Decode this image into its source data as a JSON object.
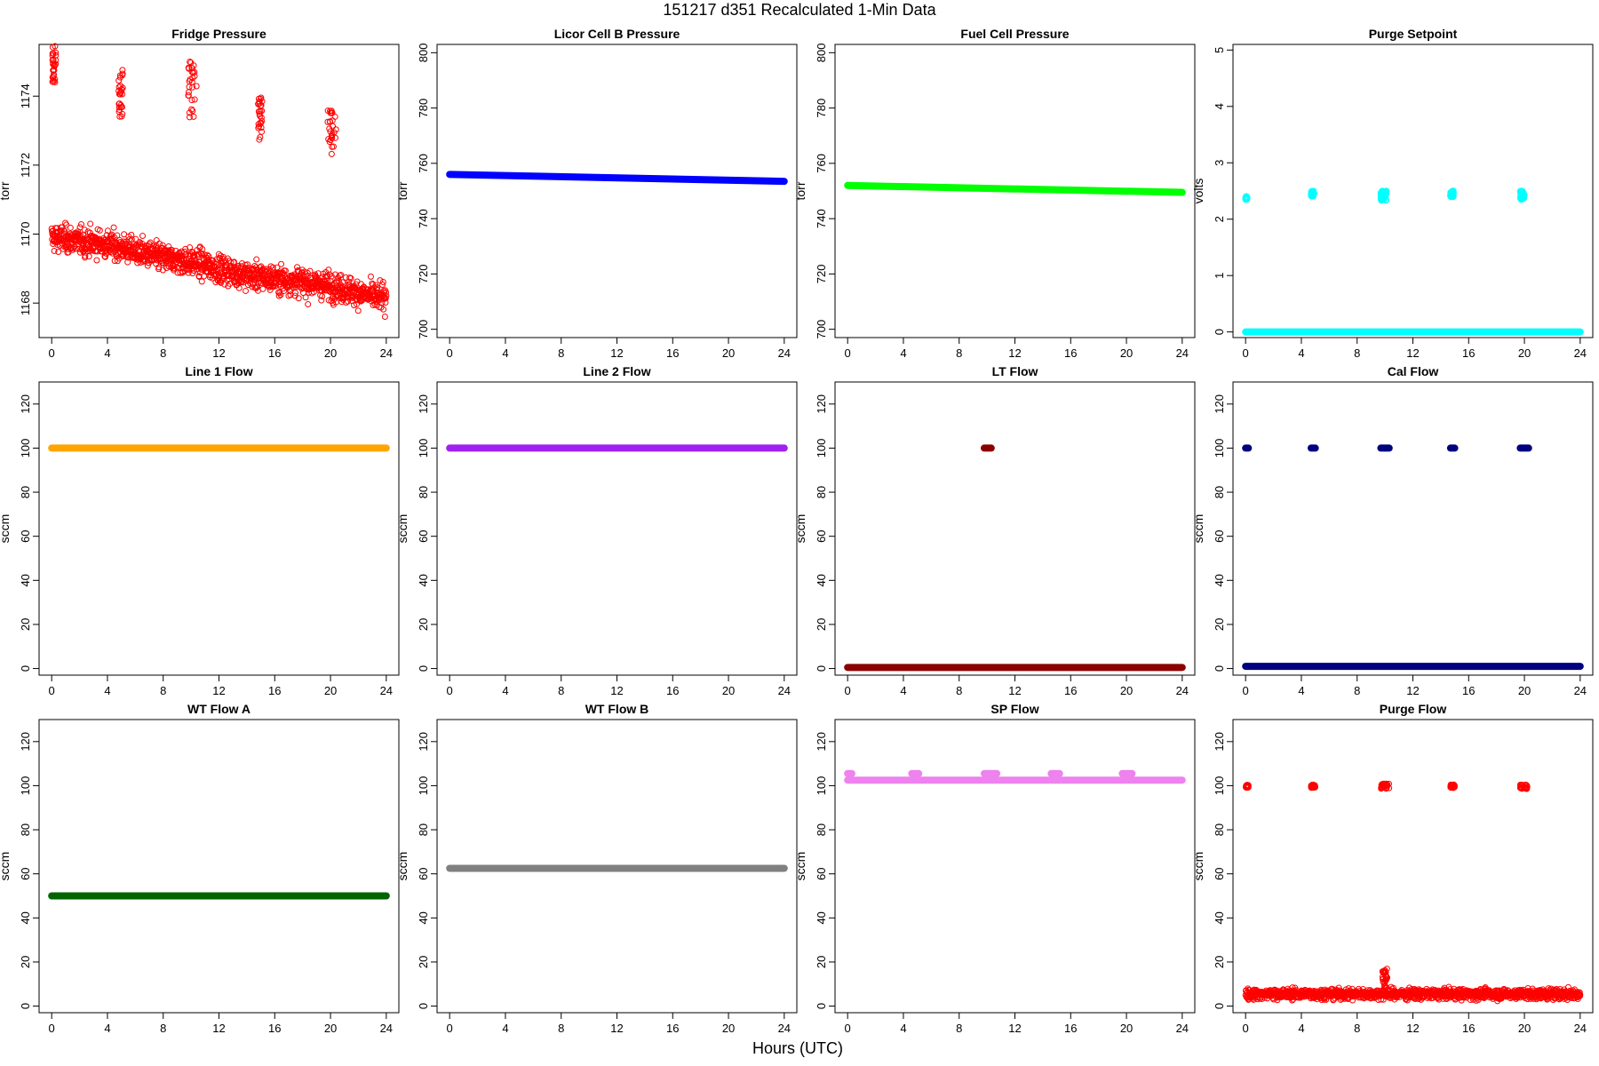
{
  "page": {
    "title": "151217   d351   Recalculated 1-Min Data",
    "xlabel": "Hours (UTC)"
  },
  "chart_data": [
    {
      "type": "scatter",
      "title": "Fridge Pressure",
      "ylabel": "torr",
      "xlim": [
        0,
        24
      ],
      "ylim": [
        1167,
        1175.5
      ],
      "yticks": [
        1168,
        1170,
        1172,
        1174
      ],
      "xticks": [
        0,
        4,
        8,
        12,
        16,
        20,
        24
      ],
      "color": "#ff0000",
      "marker": "open",
      "series": [
        {
          "type": "trend",
          "x": [
            0,
            2,
            4,
            6,
            8,
            10,
            12,
            14,
            16,
            18,
            20,
            22,
            24
          ],
          "y": [
            1169.9,
            1169.8,
            1169.7,
            1169.5,
            1169.3,
            1169.2,
            1169.0,
            1168.8,
            1168.7,
            1168.6,
            1168.5,
            1168.3,
            1168.1
          ],
          "spread": 0.5
        },
        {
          "type": "cluster",
          "x": [
            0.05,
            0.3
          ],
          "y": [
            1174.4,
            1175.5
          ]
        },
        {
          "type": "cluster",
          "x": [
            4.8,
            5.1
          ],
          "y": [
            1173.4,
            1174.8
          ]
        },
        {
          "type": "cluster",
          "x": [
            9.8,
            10.4
          ],
          "y": [
            1173.3,
            1175.0
          ]
        },
        {
          "type": "cluster",
          "x": [
            14.8,
            15.1
          ],
          "y": [
            1172.6,
            1174.0
          ]
        },
        {
          "type": "cluster",
          "x": [
            19.8,
            20.4
          ],
          "y": [
            1172.3,
            1173.6
          ]
        }
      ]
    },
    {
      "type": "scatter",
      "title": "Licor Cell B Pressure",
      "ylabel": "torr",
      "xlim": [
        0,
        24
      ],
      "ylim": [
        697,
        803
      ],
      "yticks": [
        700,
        720,
        740,
        760,
        780,
        800
      ],
      "xticks": [
        0,
        4,
        8,
        12,
        16,
        20,
        24
      ],
      "color": "#0000ff",
      "marker": "filled",
      "series": [
        {
          "type": "line",
          "x": [
            0,
            24
          ],
          "y": [
            756,
            753.5
          ]
        }
      ]
    },
    {
      "type": "scatter",
      "title": "Fuel Cell Pressure",
      "ylabel": "torr",
      "xlim": [
        0,
        24
      ],
      "ylim": [
        697,
        803
      ],
      "yticks": [
        700,
        720,
        740,
        760,
        780,
        800
      ],
      "xticks": [
        0,
        4,
        8,
        12,
        16,
        20,
        24
      ],
      "color": "#00ff00",
      "marker": "filled",
      "series": [
        {
          "type": "line",
          "x": [
            0,
            24
          ],
          "y": [
            752,
            749.5
          ]
        }
      ]
    },
    {
      "type": "scatter",
      "title": "Purge Setpoint",
      "ylabel": "volts",
      "xlim": [
        0,
        24
      ],
      "ylim": [
        -0.1,
        5.1
      ],
      "yticks": [
        0,
        1,
        2,
        3,
        4,
        5
      ],
      "xticks": [
        0,
        4,
        8,
        12,
        16,
        20,
        24
      ],
      "color": "#00ffff",
      "marker": "filled",
      "series": [
        {
          "type": "line",
          "x": [
            0,
            24
          ],
          "y": [
            0,
            0
          ]
        },
        {
          "type": "cluster",
          "x": [
            0.0,
            0.1
          ],
          "y": [
            2.35,
            2.4
          ]
        },
        {
          "type": "cluster",
          "x": [
            4.7,
            4.9
          ],
          "y": [
            2.4,
            2.5
          ]
        },
        {
          "type": "cluster",
          "x": [
            9.7,
            10.1
          ],
          "y": [
            2.33,
            2.5
          ]
        },
        {
          "type": "cluster",
          "x": [
            14.7,
            14.9
          ],
          "y": [
            2.4,
            2.5
          ]
        },
        {
          "type": "cluster",
          "x": [
            19.7,
            20.0
          ],
          "y": [
            2.35,
            2.5
          ]
        }
      ]
    },
    {
      "type": "scatter",
      "title": "Line 1 Flow",
      "ylabel": "sccm",
      "xlim": [
        0,
        24
      ],
      "ylim": [
        -3,
        130
      ],
      "yticks": [
        0,
        20,
        40,
        60,
        80,
        100,
        120
      ],
      "xticks": [
        0,
        4,
        8,
        12,
        16,
        20,
        24
      ],
      "color": "#ffa500",
      "marker": "filled",
      "series": [
        {
          "type": "line",
          "x": [
            0,
            24
          ],
          "y": [
            100,
            100
          ]
        }
      ]
    },
    {
      "type": "scatter",
      "title": "Line 2 Flow",
      "ylabel": "sccm",
      "xlim": [
        0,
        24
      ],
      "ylim": [
        -3,
        130
      ],
      "yticks": [
        0,
        20,
        40,
        60,
        80,
        100,
        120
      ],
      "xticks": [
        0,
        4,
        8,
        12,
        16,
        20,
        24
      ],
      "color": "#a020f0",
      "marker": "filled",
      "series": [
        {
          "type": "line",
          "x": [
            0,
            24
          ],
          "y": [
            100,
            100
          ]
        }
      ]
    },
    {
      "type": "scatter",
      "title": "LT Flow",
      "ylabel": "sccm",
      "xlim": [
        0,
        24
      ],
      "ylim": [
        -3,
        130
      ],
      "yticks": [
        0,
        20,
        40,
        60,
        80,
        100,
        120
      ],
      "xticks": [
        0,
        4,
        8,
        12,
        16,
        20,
        24
      ],
      "color": "#8b0000",
      "marker": "filled",
      "series": [
        {
          "type": "line",
          "x": [
            0,
            24
          ],
          "y": [
            0.5,
            0.5
          ]
        },
        {
          "type": "line",
          "x": [
            9.8,
            10.3
          ],
          "y": [
            100,
            100
          ]
        }
      ]
    },
    {
      "type": "scatter",
      "title": "Cal Flow",
      "ylabel": "sccm",
      "xlim": [
        0,
        24
      ],
      "ylim": [
        -3,
        130
      ],
      "yticks": [
        0,
        20,
        40,
        60,
        80,
        100,
        120
      ],
      "xticks": [
        0,
        4,
        8,
        12,
        16,
        20,
        24
      ],
      "color": "#000080",
      "marker": "filled",
      "series": [
        {
          "type": "line",
          "x": [
            0,
            24
          ],
          "y": [
            1,
            1
          ]
        },
        {
          "type": "line",
          "x": [
            0.0,
            0.2
          ],
          "y": [
            100,
            100
          ]
        },
        {
          "type": "line",
          "x": [
            4.7,
            5.0
          ],
          "y": [
            100,
            100
          ]
        },
        {
          "type": "line",
          "x": [
            9.7,
            10.3
          ],
          "y": [
            100,
            100
          ]
        },
        {
          "type": "line",
          "x": [
            14.7,
            15.0
          ],
          "y": [
            100,
            100
          ]
        },
        {
          "type": "line",
          "x": [
            19.7,
            20.3
          ],
          "y": [
            100,
            100
          ]
        }
      ]
    },
    {
      "type": "scatter",
      "title": "WT Flow A",
      "ylabel": "sccm",
      "xlim": [
        0,
        24
      ],
      "ylim": [
        -3,
        130
      ],
      "yticks": [
        0,
        20,
        40,
        60,
        80,
        100,
        120
      ],
      "xticks": [
        0,
        4,
        8,
        12,
        16,
        20,
        24
      ],
      "color": "#006400",
      "marker": "filled",
      "series": [
        {
          "type": "line",
          "x": [
            0,
            24
          ],
          "y": [
            50,
            50
          ]
        }
      ]
    },
    {
      "type": "scatter",
      "title": "WT Flow B",
      "ylabel": "sccm",
      "xlim": [
        0,
        24
      ],
      "ylim": [
        -3,
        130
      ],
      "yticks": [
        0,
        20,
        40,
        60,
        80,
        100,
        120
      ],
      "xticks": [
        0,
        4,
        8,
        12,
        16,
        20,
        24
      ],
      "color": "#808080",
      "marker": "filled",
      "series": [
        {
          "type": "line",
          "x": [
            0,
            24
          ],
          "y": [
            62.5,
            62.5
          ]
        }
      ]
    },
    {
      "type": "scatter",
      "title": "SP Flow",
      "ylabel": "sccm",
      "xlim": [
        0,
        24
      ],
      "ylim": [
        -3,
        130
      ],
      "yticks": [
        0,
        20,
        40,
        60,
        80,
        100,
        120
      ],
      "xticks": [
        0,
        4,
        8,
        12,
        16,
        20,
        24
      ],
      "color": "#ee82ee",
      "marker": "filled",
      "series": [
        {
          "type": "line",
          "x": [
            0,
            24
          ],
          "y": [
            102.5,
            102.5
          ]
        },
        {
          "type": "line",
          "x": [
            0.0,
            0.3
          ],
          "y": [
            105.5,
            105.5
          ]
        },
        {
          "type": "line",
          "x": [
            4.6,
            5.1
          ],
          "y": [
            105.5,
            105.5
          ]
        },
        {
          "type": "line",
          "x": [
            9.8,
            10.7
          ],
          "y": [
            105.5,
            105.5
          ]
        },
        {
          "type": "line",
          "x": [
            14.6,
            15.2
          ],
          "y": [
            105.5,
            105.5
          ]
        },
        {
          "type": "line",
          "x": [
            19.7,
            20.4
          ],
          "y": [
            105.5,
            105.5
          ]
        }
      ]
    },
    {
      "type": "scatter",
      "title": "Purge Flow",
      "ylabel": "sccm",
      "xlim": [
        0,
        24
      ],
      "ylim": [
        -3,
        130
      ],
      "yticks": [
        0,
        20,
        40,
        60,
        80,
        100,
        120
      ],
      "xticks": [
        0,
        4,
        8,
        12,
        16,
        20,
        24
      ],
      "color": "#ff0000",
      "marker": "open",
      "series": [
        {
          "type": "trend",
          "x": [
            0,
            24
          ],
          "y": [
            5.5,
            5.5
          ],
          "spread": 3
        },
        {
          "type": "cluster",
          "x": [
            9.8,
            10.2
          ],
          "y": [
            8,
            17
          ]
        },
        {
          "type": "cluster",
          "x": [
            0.0,
            0.2
          ],
          "y": [
            99,
            100.5
          ]
        },
        {
          "type": "cluster",
          "x": [
            4.7,
            5.0
          ],
          "y": [
            99,
            100.5
          ]
        },
        {
          "type": "cluster",
          "x": [
            9.7,
            10.3
          ],
          "y": [
            98.5,
            101
          ]
        },
        {
          "type": "cluster",
          "x": [
            14.7,
            15.0
          ],
          "y": [
            99,
            100.5
          ]
        },
        {
          "type": "cluster",
          "x": [
            19.7,
            20.2
          ],
          "y": [
            98.5,
            100.5
          ]
        }
      ]
    }
  ]
}
